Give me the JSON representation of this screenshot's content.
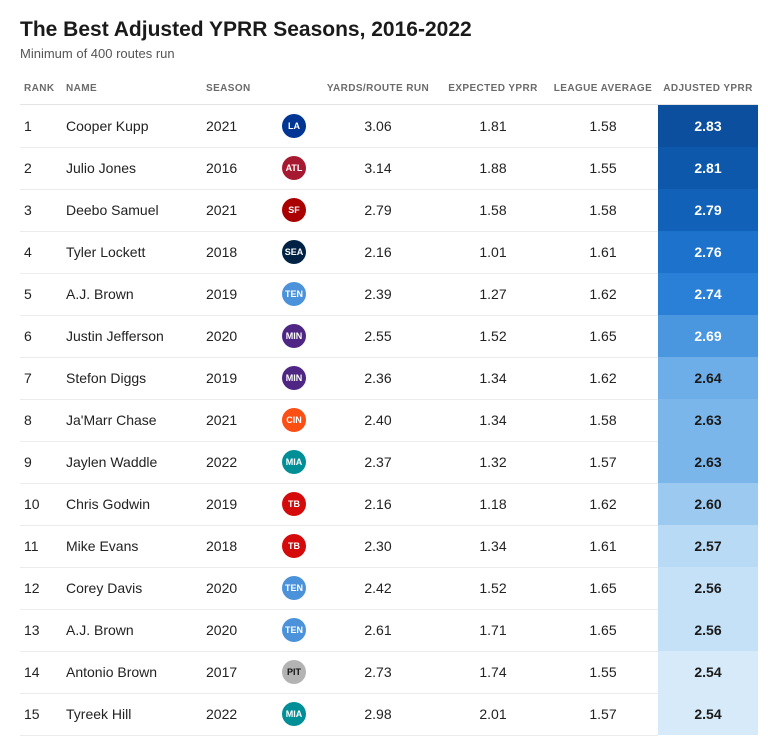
{
  "title": "The Best Adjusted YPRR Seasons, 2016-2022",
  "subtitle": "Minimum of 400 routes run",
  "columns": {
    "rank": "RANK",
    "name": "NAME",
    "season": "SEASON",
    "team": "",
    "yprr": "YARDS/ROUTE RUN",
    "expected": "EXPECTED YPRR",
    "league_avg": "LEAGUE AVERAGE",
    "adjusted": "ADJUSTED YPRR"
  },
  "team_colors": {
    "LAR": {
      "bg": "#003594",
      "abbr": "LA"
    },
    "ATL": {
      "bg": "#a71930",
      "abbr": "ATL"
    },
    "SF": {
      "bg": "#aa0000",
      "abbr": "SF"
    },
    "SEA": {
      "bg": "#002244",
      "abbr": "SEA"
    },
    "TEN": {
      "bg": "#4b92db",
      "abbr": "TEN"
    },
    "MIN": {
      "bg": "#4f2683",
      "abbr": "MIN"
    },
    "CIN": {
      "bg": "#fb4f14",
      "abbr": "CIN"
    },
    "MIA": {
      "bg": "#008e97",
      "abbr": "MIA"
    },
    "TB": {
      "bg": "#d50a0a",
      "abbr": "TB"
    },
    "PIT": {
      "bg": "#b3b3b3",
      "abbr": "PIT"
    }
  },
  "adjusted_color_scale": {
    "max_adj": 2.83,
    "min_adj": 2.54,
    "colors": [
      {
        "stop": 2.83,
        "bg": "#0b4f9e",
        "fg": "#ffffff"
      },
      {
        "stop": 2.81,
        "bg": "#0d58ab",
        "fg": "#ffffff"
      },
      {
        "stop": 2.79,
        "bg": "#1161b8",
        "fg": "#ffffff"
      },
      {
        "stop": 2.76,
        "bg": "#1d72cc",
        "fg": "#ffffff"
      },
      {
        "stop": 2.74,
        "bg": "#2a7fd6",
        "fg": "#ffffff"
      },
      {
        "stop": 2.69,
        "bg": "#4a97e0",
        "fg": "#ffffff"
      },
      {
        "stop": 2.64,
        "bg": "#6eaee8",
        "fg": "#1a1a1a"
      },
      {
        "stop": 2.63,
        "bg": "#7bb6eb",
        "fg": "#1a1a1a"
      },
      {
        "stop": 2.6,
        "bg": "#9cc9f0",
        "fg": "#1a1a1a"
      },
      {
        "stop": 2.57,
        "bg": "#b9daf5",
        "fg": "#1a1a1a"
      },
      {
        "stop": 2.56,
        "bg": "#c5e1f7",
        "fg": "#1a1a1a"
      },
      {
        "stop": 2.54,
        "bg": "#d7eaf9",
        "fg": "#1a1a1a"
      }
    ]
  },
  "rows": [
    {
      "rank": 1,
      "name": "Cooper Kupp",
      "season": 2021,
      "team": "LAR",
      "yprr": "3.06",
      "expected": "1.81",
      "league_avg": "1.58",
      "adjusted": "2.83"
    },
    {
      "rank": 2,
      "name": "Julio Jones",
      "season": 2016,
      "team": "ATL",
      "yprr": "3.14",
      "expected": "1.88",
      "league_avg": "1.55",
      "adjusted": "2.81"
    },
    {
      "rank": 3,
      "name": "Deebo Samuel",
      "season": 2021,
      "team": "SF",
      "yprr": "2.79",
      "expected": "1.58",
      "league_avg": "1.58",
      "adjusted": "2.79"
    },
    {
      "rank": 4,
      "name": "Tyler Lockett",
      "season": 2018,
      "team": "SEA",
      "yprr": "2.16",
      "expected": "1.01",
      "league_avg": "1.61",
      "adjusted": "2.76"
    },
    {
      "rank": 5,
      "name": "A.J. Brown",
      "season": 2019,
      "team": "TEN",
      "yprr": "2.39",
      "expected": "1.27",
      "league_avg": "1.62",
      "adjusted": "2.74"
    },
    {
      "rank": 6,
      "name": "Justin Jefferson",
      "season": 2020,
      "team": "MIN",
      "yprr": "2.55",
      "expected": "1.52",
      "league_avg": "1.65",
      "adjusted": "2.69"
    },
    {
      "rank": 7,
      "name": "Stefon Diggs",
      "season": 2019,
      "team": "MIN",
      "yprr": "2.36",
      "expected": "1.34",
      "league_avg": "1.62",
      "adjusted": "2.64"
    },
    {
      "rank": 8,
      "name": "Ja'Marr Chase",
      "season": 2021,
      "team": "CIN",
      "yprr": "2.40",
      "expected": "1.34",
      "league_avg": "1.58",
      "adjusted": "2.63"
    },
    {
      "rank": 9,
      "name": "Jaylen Waddle",
      "season": 2022,
      "team": "MIA",
      "yprr": "2.37",
      "expected": "1.32",
      "league_avg": "1.57",
      "adjusted": "2.63"
    },
    {
      "rank": 10,
      "name": "Chris Godwin",
      "season": 2019,
      "team": "TB",
      "yprr": "2.16",
      "expected": "1.18",
      "league_avg": "1.62",
      "adjusted": "2.60"
    },
    {
      "rank": 11,
      "name": "Mike Evans",
      "season": 2018,
      "team": "TB",
      "yprr": "2.30",
      "expected": "1.34",
      "league_avg": "1.61",
      "adjusted": "2.57"
    },
    {
      "rank": 12,
      "name": "Corey Davis",
      "season": 2020,
      "team": "TEN",
      "yprr": "2.42",
      "expected": "1.52",
      "league_avg": "1.65",
      "adjusted": "2.56"
    },
    {
      "rank": 13,
      "name": "A.J. Brown",
      "season": 2020,
      "team": "TEN",
      "yprr": "2.61",
      "expected": "1.71",
      "league_avg": "1.65",
      "adjusted": "2.56"
    },
    {
      "rank": 14,
      "name": "Antonio Brown",
      "season": 2017,
      "team": "PIT",
      "yprr": "2.73",
      "expected": "1.74",
      "league_avg": "1.55",
      "adjusted": "2.54"
    },
    {
      "rank": 15,
      "name": "Tyreek Hill",
      "season": 2022,
      "team": "MIA",
      "yprr": "2.98",
      "expected": "2.01",
      "league_avg": "1.57",
      "adjusted": "2.54"
    }
  ]
}
